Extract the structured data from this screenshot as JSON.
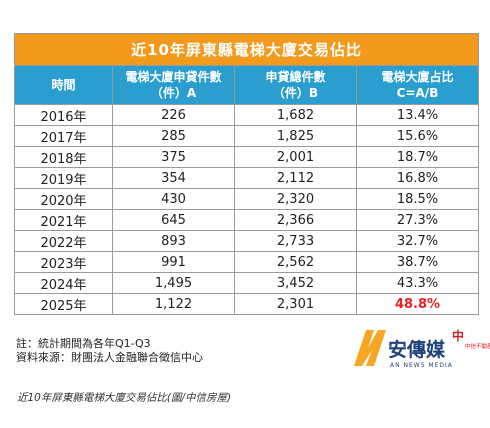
{
  "chart_data": {
    "type": "table",
    "title": "近10年屏東縣電梯大廈交易佔比",
    "columns": [
      "時間",
      "電梯大廈申貸件數\n（件）A",
      "申貸總件數\n（件）B",
      "電梯大廈占比\nC=A/B"
    ],
    "rows": [
      [
        "2016年",
        "226",
        "1,682",
        "13.4%"
      ],
      [
        "2017年",
        "285",
        "1,825",
        "15.6%"
      ],
      [
        "2018年",
        "375",
        "2,001",
        "18.7%"
      ],
      [
        "2019年",
        "354",
        "2,112",
        "16.8%"
      ],
      [
        "2020年",
        "430",
        "2,320",
        "18.5%"
      ],
      [
        "2021年",
        "645",
        "2,366",
        "27.3%"
      ],
      [
        "2022年",
        "893",
        "2,733",
        "32.7%"
      ],
      [
        "2023年",
        "991",
        "2,562",
        "38.7%"
      ],
      [
        "2024年",
        "1,495",
        "3,452",
        "43.3%"
      ],
      [
        "2025年",
        "1,122",
        "2,301",
        "48.8%"
      ]
    ],
    "highlight_cell": {
      "row": 9,
      "col": 3,
      "color": "#e8202a"
    }
  },
  "notes": {
    "line1": "註：統計期間為各年Q1-Q3",
    "line2": "資料來源：財團法人金融聯合徵信中心"
  },
  "logo": {
    "main": "安傳媒",
    "sub": "AN NEWS MEDIA",
    "badge": "中",
    "badge_text": "中信不動產"
  },
  "caption": "近10年屏東縣電梯大廈交易佔比(圖/中信房屋)",
  "colors": {
    "title_bg": "#f39a1c",
    "header_bg": "#2a9fcf",
    "highlight": "#e8202a"
  }
}
